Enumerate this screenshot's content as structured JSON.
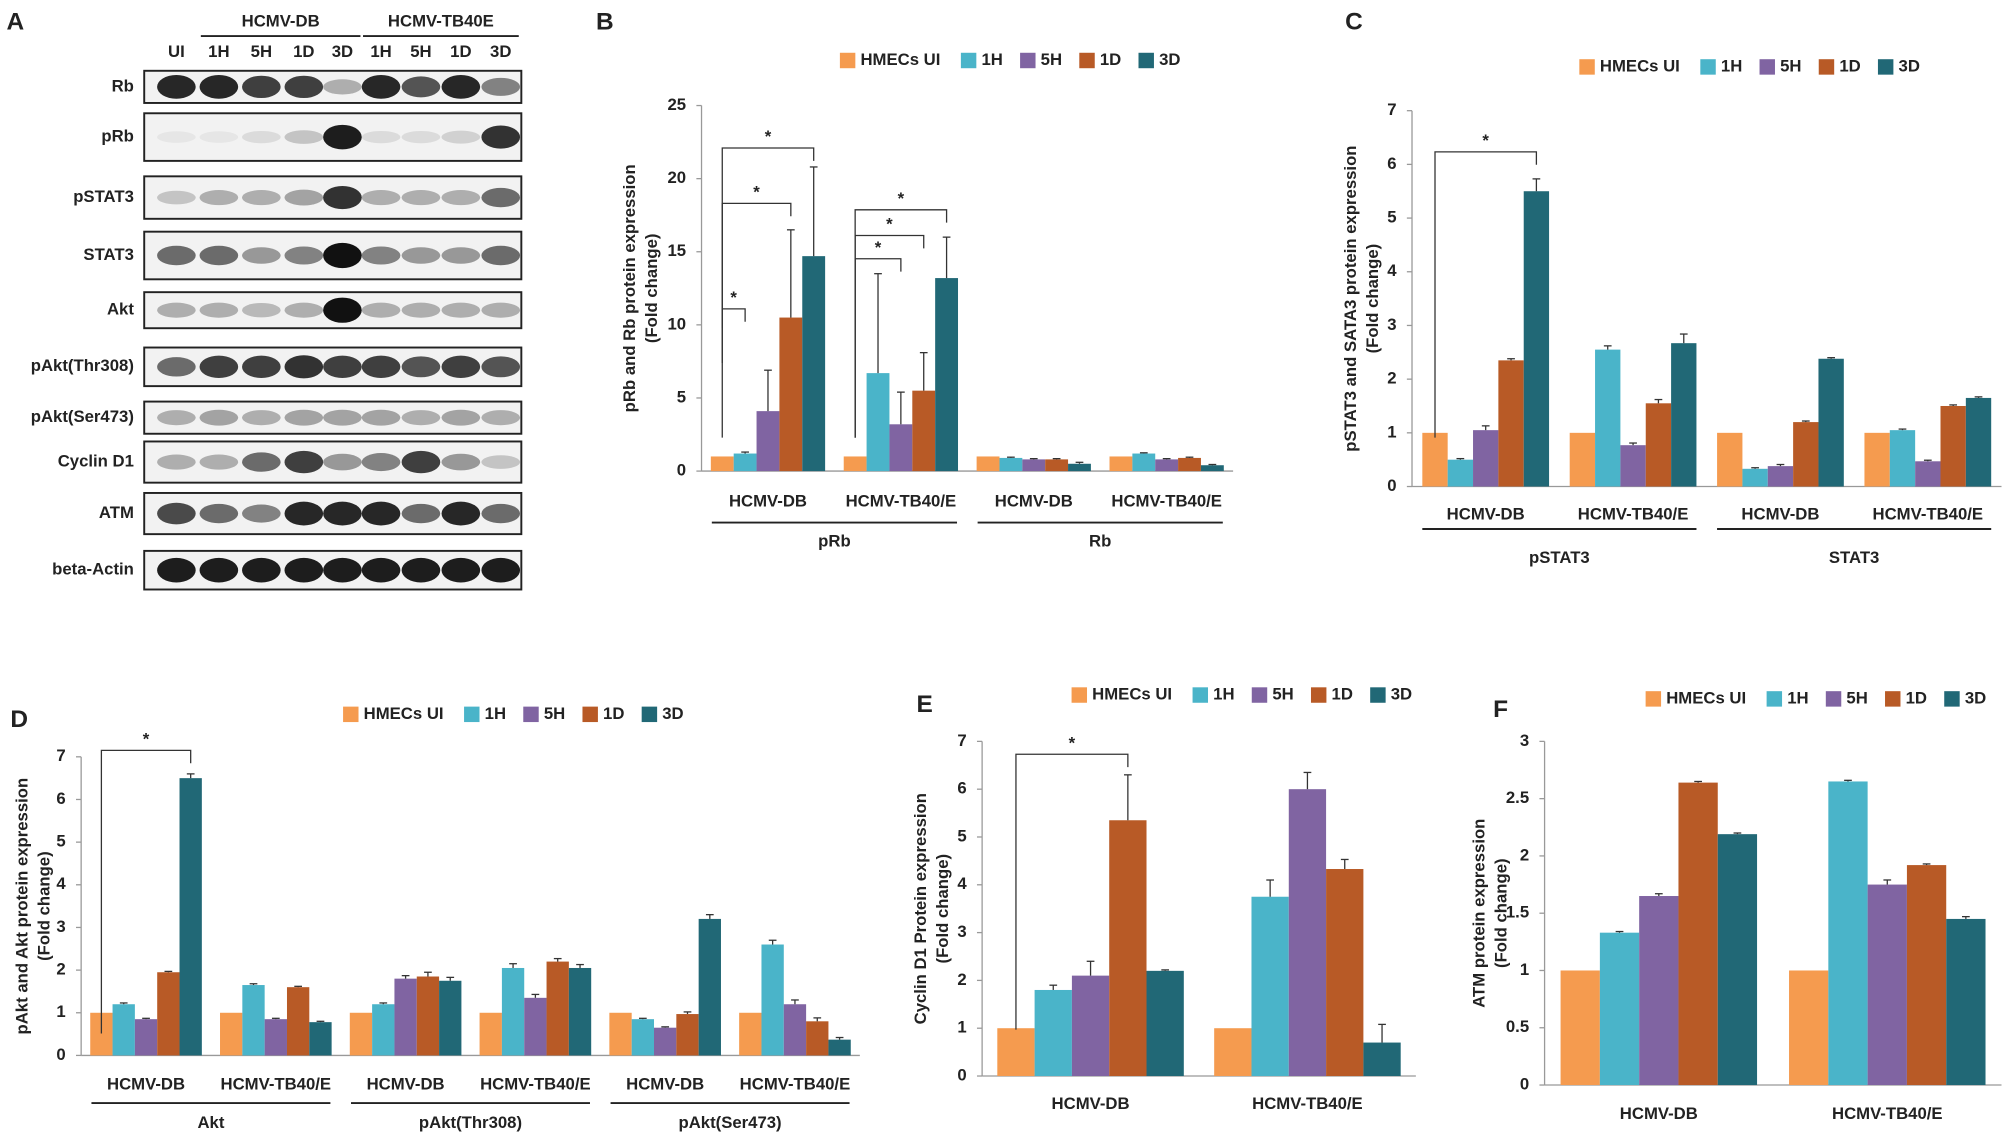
{
  "blot": {
    "panel": "A",
    "groups": [
      "HCMV-DB",
      "HCMV-TB40E"
    ],
    "lanes": [
      "UI",
      "1H",
      "5H",
      "1D",
      "3D",
      "1H",
      "5H",
      "1D",
      "3D"
    ],
    "rows": [
      "Rb",
      "pRb",
      "pSTAT3",
      "STAT3",
      "Akt",
      "pAkt(Thr308)",
      "pAkt(Ser473)",
      "Cyclin D1",
      "ATM",
      "beta-Actin"
    ]
  },
  "chart_data": [
    {
      "type": "bar",
      "panel": "B",
      "ylabel": [
        "pRb and Rb protein expression",
        "(Fold change)"
      ],
      "categories": [
        "HCMV-DB",
        "HCMV-TB40/E",
        "HCMV-DB",
        "HCMV-TB40/E"
      ],
      "group_labels": [
        "pRb",
        "Rb"
      ],
      "ylim": [
        0,
        25
      ],
      "yticks": [
        0,
        5,
        10,
        15,
        20,
        25
      ],
      "annotations": [
        "*",
        "*",
        "*",
        "*",
        "*",
        "*"
      ],
      "series": [
        {
          "name": "HMECs UI",
          "color": "#f59b4f",
          "values": [
            1,
            1,
            1,
            1
          ]
        },
        {
          "name": "1H",
          "color": "#4ab4c9",
          "values": [
            1.2,
            6.7,
            0.9,
            1.2
          ],
          "errors": [
            0.1,
            6.8,
            0.05,
            0.05
          ]
        },
        {
          "name": "5H",
          "color": "#8064a2",
          "values": [
            4.1,
            3.2,
            0.8,
            0.8
          ],
          "errors": [
            2.8,
            2.2,
            0.05,
            0.05
          ]
        },
        {
          "name": "1D",
          "color": "#b85a26",
          "values": [
            10.5,
            5.5,
            0.8,
            0.9
          ],
          "errors": [
            6,
            2.6,
            0.05,
            0.05
          ]
        },
        {
          "name": "3D",
          "color": "#216876",
          "values": [
            14.7,
            13.2,
            0.5,
            0.4
          ],
          "errors": [
            6.1,
            2.8,
            0.1,
            0.05
          ]
        }
      ]
    },
    {
      "type": "bar",
      "panel": "C",
      "ylabel": [
        "pSTAT3 and SATA3 protein expression",
        "(Fold change)"
      ],
      "categories": [
        "HCMV-DB",
        "HCMV-TB40/E",
        "HCMV-DB",
        "HCMV-TB40/E"
      ],
      "group_labels": [
        "pSTAT3",
        "STAT3"
      ],
      "ylim": [
        0,
        7
      ],
      "yticks": [
        0,
        1,
        2,
        3,
        4,
        5,
        6,
        7
      ],
      "annotations": [
        "*"
      ],
      "series": [
        {
          "name": "HMECs UI",
          "color": "#f59b4f",
          "values": [
            1,
            1,
            1,
            1
          ]
        },
        {
          "name": "1H",
          "color": "#4ab4c9",
          "values": [
            0.5,
            2.55,
            0.33,
            1.05
          ],
          "errors": [
            0.02,
            0.07,
            0.02,
            0.02
          ]
        },
        {
          "name": "5H",
          "color": "#8064a2",
          "values": [
            1.05,
            0.77,
            0.38,
            0.47
          ],
          "errors": [
            0.08,
            0.04,
            0.03,
            0.02
          ]
        },
        {
          "name": "1D",
          "color": "#b85a26",
          "values": [
            2.35,
            1.55,
            1.2,
            1.5
          ],
          "errors": [
            0.03,
            0.07,
            0.02,
            0.02
          ]
        },
        {
          "name": "3D",
          "color": "#216876",
          "values": [
            5.5,
            2.67,
            2.38,
            1.65
          ],
          "errors": [
            0.23,
            0.17,
            0.02,
            0.02
          ]
        }
      ]
    },
    {
      "type": "bar",
      "panel": "D",
      "ylabel": [
        "pAkt and Akt protein expression",
        "(Fold change)"
      ],
      "categories": [
        "HCMV-DB",
        "HCMV-TB40/E",
        "HCMV-DB",
        "HCMV-TB40/E",
        "HCMV-DB",
        "HCMV-TB40/E"
      ],
      "group_labels": [
        "Akt",
        "pAkt(Thr308)",
        "pAkt(Ser473)"
      ],
      "ylim": [
        0,
        7
      ],
      "yticks": [
        0,
        1,
        2,
        3,
        4,
        5,
        6,
        7
      ],
      "annotations": [
        "*"
      ],
      "series": [
        {
          "name": "HMECs UI",
          "color": "#f59b4f",
          "values": [
            1,
            1,
            1,
            1,
            1,
            1
          ]
        },
        {
          "name": "1H",
          "color": "#4ab4c9",
          "values": [
            1.2,
            1.65,
            1.2,
            2.05,
            0.85,
            2.6
          ],
          "errors": [
            0.03,
            0.03,
            0.03,
            0.1,
            0.02,
            0.1
          ]
        },
        {
          "name": "5H",
          "color": "#8064a2",
          "values": [
            0.85,
            0.85,
            1.8,
            1.35,
            0.65,
            1.2
          ],
          "errors": [
            0.02,
            0.02,
            0.07,
            0.08,
            0.02,
            0.1
          ]
        },
        {
          "name": "1D",
          "color": "#b85a26",
          "values": [
            1.95,
            1.6,
            1.85,
            2.2,
            0.97,
            0.8
          ],
          "errors": [
            0.02,
            0.02,
            0.1,
            0.07,
            0.05,
            0.08
          ]
        },
        {
          "name": "3D",
          "color": "#216876",
          "values": [
            6.5,
            0.78,
            1.75,
            2.05,
            3.2,
            0.37
          ],
          "errors": [
            0.1,
            0.02,
            0.08,
            0.08,
            0.1,
            0.05
          ]
        }
      ]
    },
    {
      "type": "bar",
      "panel": "E",
      "ylabel": [
        "Cyclin D1 Protein expression",
        "(Fold change)"
      ],
      "categories": [
        "HCMV-DB",
        "HCMV-TB40/E"
      ],
      "ylim": [
        0,
        7
      ],
      "yticks": [
        0,
        1,
        2,
        3,
        4,
        5,
        6,
        7
      ],
      "annotations": [
        "*"
      ],
      "series": [
        {
          "name": "HMECs UI",
          "color": "#f59b4f",
          "values": [
            1,
            1
          ]
        },
        {
          "name": "1H",
          "color": "#4ab4c9",
          "values": [
            1.8,
            3.75
          ],
          "errors": [
            0.1,
            0.35
          ]
        },
        {
          "name": "5H",
          "color": "#8064a2",
          "values": [
            2.1,
            6.0
          ],
          "errors": [
            0.3,
            0.35
          ]
        },
        {
          "name": "1D",
          "color": "#b85a26",
          "values": [
            5.35,
            4.33
          ],
          "errors": [
            0.95,
            0.2
          ]
        },
        {
          "name": "3D",
          "color": "#216876",
          "values": [
            2.2,
            0.7
          ],
          "errors": [
            0.02,
            0.38
          ]
        }
      ]
    },
    {
      "type": "bar",
      "panel": "F",
      "ylabel": [
        "ATM protein expression",
        "(Fold change)"
      ],
      "categories": [
        "HCMV-DB",
        "HCMV-TB40/E"
      ],
      "ylim": [
        0,
        3
      ],
      "yticks": [
        0,
        0.5,
        1,
        1.5,
        2,
        2.5,
        3
      ],
      "series": [
        {
          "name": "HMECs UI",
          "color": "#f59b4f",
          "values": [
            1,
            1
          ]
        },
        {
          "name": "1H",
          "color": "#4ab4c9",
          "values": [
            1.33,
            2.65
          ],
          "errors": [
            0.01,
            0.01
          ]
        },
        {
          "name": "5H",
          "color": "#8064a2",
          "values": [
            1.65,
            1.75
          ],
          "errors": [
            0.02,
            0.04
          ]
        },
        {
          "name": "1D",
          "color": "#b85a26",
          "values": [
            2.64,
            1.92
          ],
          "errors": [
            0.01,
            0.01
          ]
        },
        {
          "name": "3D",
          "color": "#216876",
          "values": [
            2.19,
            1.45
          ],
          "errors": [
            0.01,
            0.02
          ]
        }
      ]
    }
  ]
}
